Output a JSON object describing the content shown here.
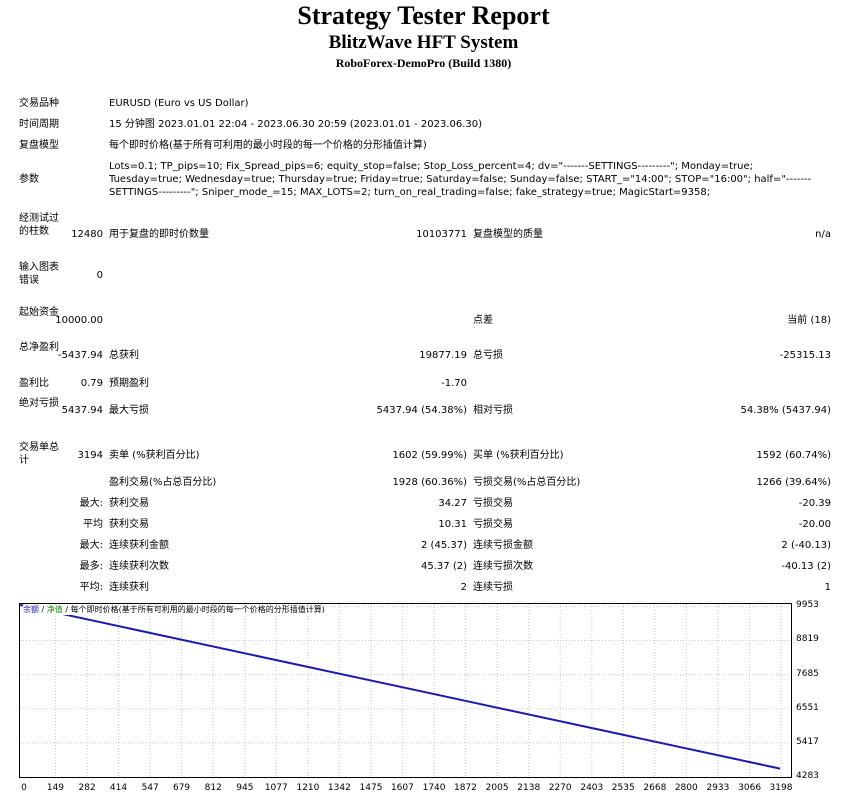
{
  "header": {
    "title": "Strategy Tester Report",
    "subtitle": "BlitzWave HFT System",
    "build": "RoboForex-DemoPro (Build 1380)"
  },
  "info": {
    "symbol_label": "交易品种",
    "symbol_value": "EURUSD (Euro vs US Dollar)",
    "period_label": "时间周期",
    "period_value": "15 分钟图 2023.01.01 22:04 - 2023.06.30 20:59 (2023.01.01 - 2023.06.30)",
    "model_label": "复盘模型",
    "model_value": "每个即时价格(基于所有可利用的最小时段的每一个价格的分形插值计算)",
    "params_label": "参数",
    "params_value": "Lots=0.1; TP_pips=10; Fix_Spread_pips=6; equity_stop=false; Stop_Loss_percent=4; dv=\"-------SETTINGS---------\"; Monday=true; Tuesday=true; Wednesday=true; Thursday=true; Friday=true; Saturday=false; Sunday=false; START_=\"14:00\"; STOP=\"16:00\"; half=\"-------SETTINGS---------\"; Sniper_mode_=15; MAX_LOTS=2; turn_on_real_trading=false; fake_strategy=true; MagicStart=9358;"
  },
  "stats": {
    "bars_label": "经测试过的柱数",
    "bars_value": "12480",
    "ticks_label": "用于复盘的即时价数量",
    "ticks_value": "10103771",
    "quality_label": "复盘模型的质量",
    "quality_value": "n/a",
    "errors_label": "输入图表错误",
    "errors_value": "0",
    "deposit_label": "起始资金",
    "deposit_value": "10000.00",
    "spread_label": "点差",
    "spread_value": "当前 (18)",
    "net_label": "总净盈利",
    "net_value": "-5437.94",
    "gross_profit_label": "总获利",
    "gross_profit_value": "19877.19",
    "gross_loss_label": "总亏损",
    "gross_loss_value": "-25315.13",
    "pf_label": "盈利比",
    "pf_value": "0.79",
    "payoff_label": "预期盈利",
    "payoff_value": "-1.70",
    "abs_dd_label": "绝对亏损",
    "abs_dd_value": "5437.94",
    "max_dd_label": "最大亏损",
    "max_dd_value": "5437.94 (54.38%)",
    "rel_dd_label": "相对亏损",
    "rel_dd_value": "54.38% (5437.94)",
    "trades_label": "交易单总计",
    "trades_value": "3194",
    "short_label": "卖单 (%获利百分比)",
    "short_value": "1602 (59.99%)",
    "long_label": "买单 (%获利百分比)",
    "long_value": "1592 (60.74%)",
    "profit_trades_label": "盈利交易(%占总百分比)",
    "profit_trades_value": "1928 (60.36%)",
    "loss_trades_label": "亏损交易(%占总百分比)",
    "loss_trades_value": "1266 (39.64%)",
    "largest_label": "最大:",
    "largest_profit_label": "获利交易",
    "largest_profit_value": "34.27",
    "largest_loss_label": "亏损交易",
    "largest_loss_value": "-20.39",
    "average_label": "平均",
    "avg_profit_label": "获利交易",
    "avg_profit_value": "10.31",
    "avg_loss_label": "亏损交易",
    "avg_loss_value": "-20.00",
    "max_consec_label": "最大:",
    "max_consec_wins_label": "连续获利金额",
    "max_consec_wins_value": "2 (45.37)",
    "max_consec_losses_label": "连续亏损金额",
    "max_consec_losses_value": "2 (-40.13)",
    "maximal_label": "最多:",
    "maximal_profit_label": "连续获利次数",
    "maximal_profit_value": "45.37 (2)",
    "maximal_loss_label": "连续亏损次数",
    "maximal_loss_value": "-40.13 (2)",
    "avg_consec_label": "平均:",
    "avg_consec_wins_label": "连续获利",
    "avg_consec_wins_value": "2",
    "avg_consec_losses_label": "连续亏损",
    "avg_consec_losses_value": "1"
  },
  "chart_legend": {
    "balance": "余额",
    "sep1": "/",
    "equity": "净值",
    "sep2": "/",
    "model": "每个即时价格(基于所有可利用的最小时段的每一个价格的分形插值计算)"
  },
  "chart_data": {
    "type": "line",
    "x_ticks": [
      "0",
      "149",
      "282",
      "414",
      "547",
      "679",
      "812",
      "945",
      "1077",
      "1210",
      "1342",
      "1475",
      "1607",
      "1740",
      "1872",
      "2005",
      "2138",
      "2270",
      "2403",
      "2535",
      "2668",
      "2800",
      "2933",
      "3066",
      "3198"
    ],
    "y_ticks": [
      "9953",
      "8819",
      "7685",
      "6551",
      "5417",
      "4283"
    ],
    "series": [
      {
        "x": [
          0,
          3194
        ],
        "y": [
          10000.0,
          4562.06
        ]
      }
    ],
    "xlim": [
      0,
      3240
    ],
    "ylim": [
      4283,
      10030
    ],
    "grid": true,
    "line_color": "#1a1ab0"
  }
}
